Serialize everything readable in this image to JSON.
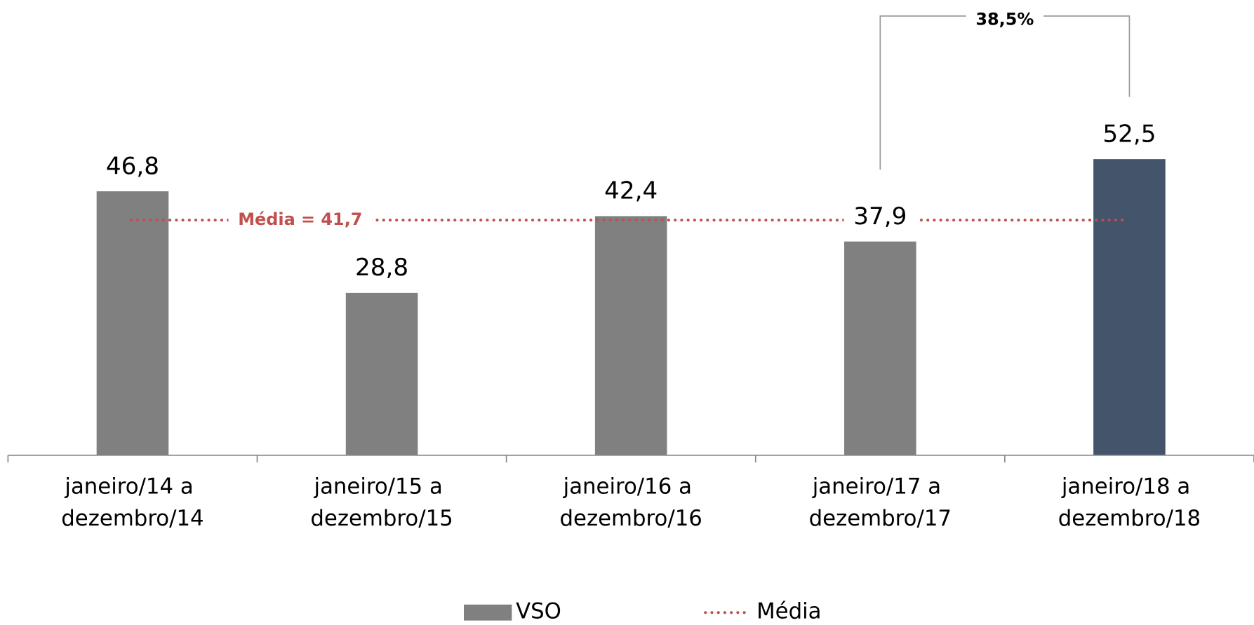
{
  "chart_data": {
    "type": "bar",
    "categories": [
      "janeiro/14 a dezembro/14",
      "janeiro/15 a dezembro/15",
      "janeiro/16 a dezembro/16",
      "janeiro/17 a dezembro/17",
      "janeiro/18 a dezembro/18"
    ],
    "series": [
      {
        "name": "VSO",
        "colors": [
          "#808080",
          "#808080",
          "#808080",
          "#808080",
          "#44546a"
        ],
        "values": [
          46.8,
          28.8,
          42.4,
          37.9,
          52.5
        ],
        "value_labels": [
          "46,8",
          "28,8",
          "42,4",
          "37,9",
          "52,5"
        ]
      }
    ],
    "reference_line": {
      "name": "Média",
      "value": 41.7,
      "color": "#c0504d",
      "label": "Média = 41,7"
    },
    "bracket_annotation": {
      "label": "38,5%",
      "from_category": 3,
      "to_category": 4
    },
    "ylim": [
      0,
      80
    ]
  }
}
